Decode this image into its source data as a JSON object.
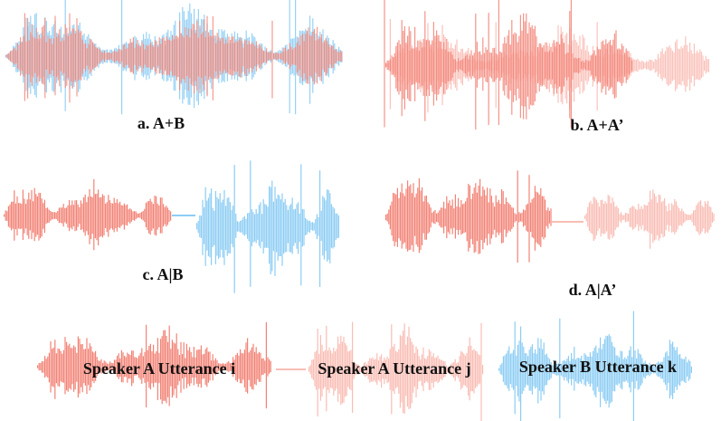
{
  "panels": [
    {
      "label": "a. A+B"
    },
    {
      "label": "b. A+A’"
    },
    {
      "label": "c. A|B"
    },
    {
      "label": "d. A|A’"
    }
  ],
  "legend": [
    {
      "label": "Speaker A Utterance i"
    },
    {
      "label": "Speaker A Utterance j"
    },
    {
      "label": "Speaker B Utterance k"
    }
  ]
}
